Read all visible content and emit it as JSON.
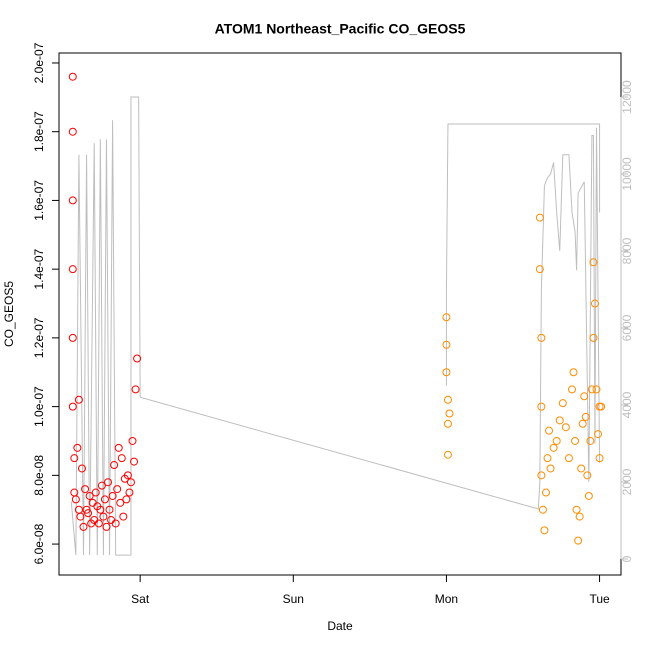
{
  "chart_data": {
    "type": "scatter",
    "title": "ATOM1 Northeast_Pacific CO_GEOS5",
    "x_label": "Date",
    "y_label": "CO_GEOS5",
    "xlim": [
      -0.53,
      3.14
    ],
    "xticks": [
      {
        "value": 0,
        "label": "Sat"
      },
      {
        "value": 1,
        "label": "Sun"
      },
      {
        "value": 2,
        "label": "Mon"
      },
      {
        "value": 3,
        "label": "Tue"
      }
    ],
    "ylim": [
      5.1e-08,
      2.029e-07
    ],
    "yticks": [
      {
        "value": 6e-08,
        "label": "6.0e-08"
      },
      {
        "value": 8e-08,
        "label": "8.0e-08"
      },
      {
        "value": 1e-07,
        "label": "1.0e-07"
      },
      {
        "value": 1.2e-07,
        "label": "1.2e-07"
      },
      {
        "value": 1.4e-07,
        "label": "1.4e-07"
      },
      {
        "value": 1.6e-07,
        "label": "1.6e-07"
      },
      {
        "value": 1.8e-07,
        "label": "1.8e-07"
      },
      {
        "value": 2e-07,
        "label": "2.0e-07"
      }
    ],
    "y2lim": [
      -416,
      13143
    ],
    "y2ticks": [
      0,
      2000,
      4000,
      6000,
      8000,
      10000,
      12000
    ],
    "y2_color": "#bebebe",
    "marker": "circle-open",
    "series": [
      {
        "color": "#ff0000",
        "x": [
          -0.44,
          -0.44,
          -0.44,
          -0.44,
          -0.44,
          -0.44,
          -0.43,
          -0.43,
          -0.42,
          -0.41,
          -0.4,
          -0.4,
          -0.39,
          -0.38,
          -0.37,
          -0.36,
          -0.35,
          -0.34,
          -0.33,
          -0.32,
          -0.31,
          -0.3,
          -0.29,
          -0.28,
          -0.27,
          -0.26,
          -0.25,
          -0.24,
          -0.23,
          -0.22,
          -0.21,
          -0.2,
          -0.19,
          -0.18,
          -0.17,
          -0.16,
          -0.15,
          -0.14,
          -0.13,
          -0.12,
          -0.11,
          -0.1,
          -0.09,
          -0.08,
          -0.07,
          -0.06,
          -0.05,
          -0.04,
          -0.03,
          -0.02
        ],
        "values": [
          1.96e-07,
          1.8e-07,
          1.6e-07,
          1.4e-07,
          1.2e-07,
          1e-07,
          8.5e-08,
          7.5e-08,
          7.3e-08,
          8.8e-08,
          1.02e-07,
          7e-08,
          6.8e-08,
          8.2e-08,
          6.5e-08,
          7.6e-08,
          7e-08,
          6.9e-08,
          7.4e-08,
          6.6e-08,
          7.2e-08,
          6.7e-08,
          7.5e-08,
          7.1e-08,
          6.6e-08,
          7e-08,
          7.7e-08,
          6.8e-08,
          7.3e-08,
          6.5e-08,
          7.8e-08,
          7e-08,
          6.7e-08,
          7.4e-08,
          8.3e-08,
          6.6e-08,
          7.6e-08,
          8.8e-08,
          7.2e-08,
          8.5e-08,
          6.8e-08,
          7.9e-08,
          7.3e-08,
          8e-08,
          7.5e-08,
          7.8e-08,
          9e-08,
          8.4e-08,
          1.05e-07,
          1.14e-07
        ]
      },
      {
        "color": "#ff8c00",
        "x": [
          2.0,
          2.0,
          2.0,
          2.01,
          2.01,
          2.01,
          2.02,
          2.61,
          2.61,
          2.62,
          2.62,
          2.62,
          2.63,
          2.64,
          2.65,
          2.66,
          2.67,
          2.68,
          2.7,
          2.72,
          2.74,
          2.76,
          2.78,
          2.8,
          2.82,
          2.83,
          2.84,
          2.85,
          2.86,
          2.87,
          2.88,
          2.89,
          2.9,
          2.91,
          2.92,
          2.93,
          2.94,
          2.95,
          2.96,
          2.96,
          2.97,
          2.98,
          2.99,
          3.0,
          3.0,
          3.01
        ],
        "values": [
          1.26e-07,
          1.18e-07,
          1.1e-07,
          1.02e-07,
          9.5e-08,
          8.6e-08,
          9.8e-08,
          1.55e-07,
          1.4e-07,
          1.2e-07,
          1e-07,
          8e-08,
          7e-08,
          6.4e-08,
          7.5e-08,
          8.5e-08,
          9.3e-08,
          8.2e-08,
          8.8e-08,
          9e-08,
          9.6e-08,
          1.01e-07,
          9.4e-08,
          8.5e-08,
          1.05e-07,
          1.1e-07,
          9e-08,
          7e-08,
          6.1e-08,
          6.8e-08,
          8.2e-08,
          9.5e-08,
          1.03e-07,
          9.7e-08,
          8e-08,
          7.4e-08,
          9e-08,
          1.05e-07,
          1.2e-07,
          1.42e-07,
          1.3e-07,
          1.05e-07,
          9.2e-08,
          1e-07,
          8.5e-08,
          1e-07
        ]
      },
      {
        "color": "#bebebe",
        "type": "line",
        "axis": "y2",
        "x": [
          -0.45,
          -0.42,
          -0.4,
          -0.37,
          -0.35,
          -0.33,
          -0.3,
          -0.28,
          -0.26,
          -0.24,
          -0.22,
          -0.2,
          -0.18,
          -0.16,
          -0.06,
          -0.06,
          -0.01,
          0.0,
          2.6,
          2.61,
          2.62,
          2.64,
          2.66,
          2.68,
          2.7,
          2.72,
          2.74,
          2.76,
          2.8,
          2.82,
          2.84,
          2.85,
          2.86,
          2.9,
          2.93,
          2.95,
          2.96,
          2.97,
          2.98,
          3.0,
          null,
          2.0,
          2.0,
          2.01,
          3.0,
          3.0
        ],
        "values": [
          1500,
          100,
          10500,
          100,
          10500,
          100,
          10800,
          100,
          10900,
          100,
          10900,
          100,
          11400,
          100,
          100,
          12000,
          12000,
          4200,
          1300,
          2000,
          7000,
          9700,
          9900,
          10000,
          10300,
          9000,
          8000,
          10500,
          10500,
          9000,
          8500,
          7500,
          9500,
          9800,
          2000,
          11000,
          11000,
          3000,
          11200,
          2500,
          null,
          4500,
          7000,
          11300,
          11300,
          9000
        ]
      }
    ]
  }
}
